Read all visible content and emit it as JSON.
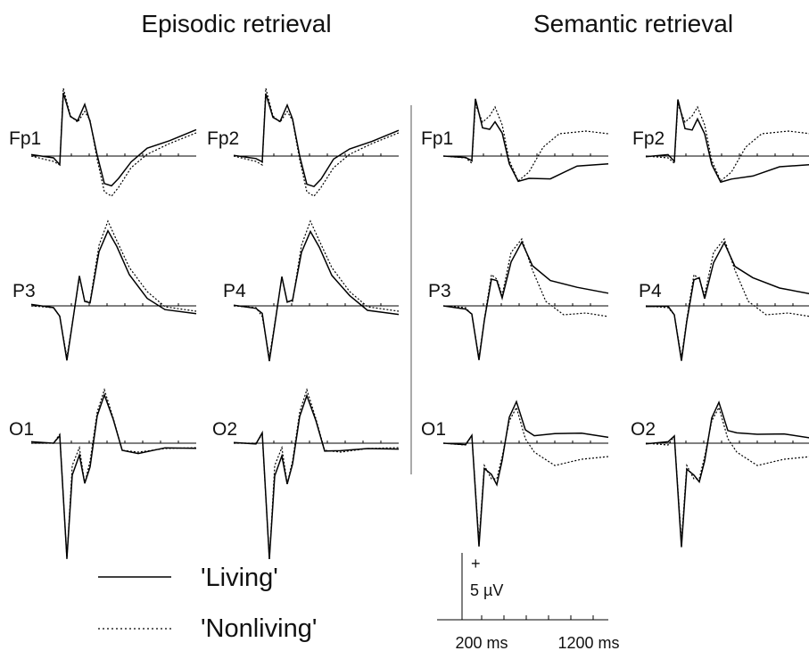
{
  "titles": [
    "Episodic retrieval",
    "Semantic retrieval"
  ],
  "panels": [
    {
      "labels": [
        "Fp1",
        "Fp2",
        "Fp1",
        "Fp2"
      ]
    },
    {
      "labels": [
        "P3",
        "P4",
        "P3",
        "P4"
      ]
    },
    {
      "labels": [
        "O1",
        "O2",
        "O1",
        "O2"
      ]
    }
  ],
  "legend": [
    "'Living'",
    "'Nonliving'"
  ],
  "scale": {
    "sign": "+",
    "amplitude": "5 µV",
    "ticks": [
      "200 ms",
      "1200 ms"
    ]
  }
}
